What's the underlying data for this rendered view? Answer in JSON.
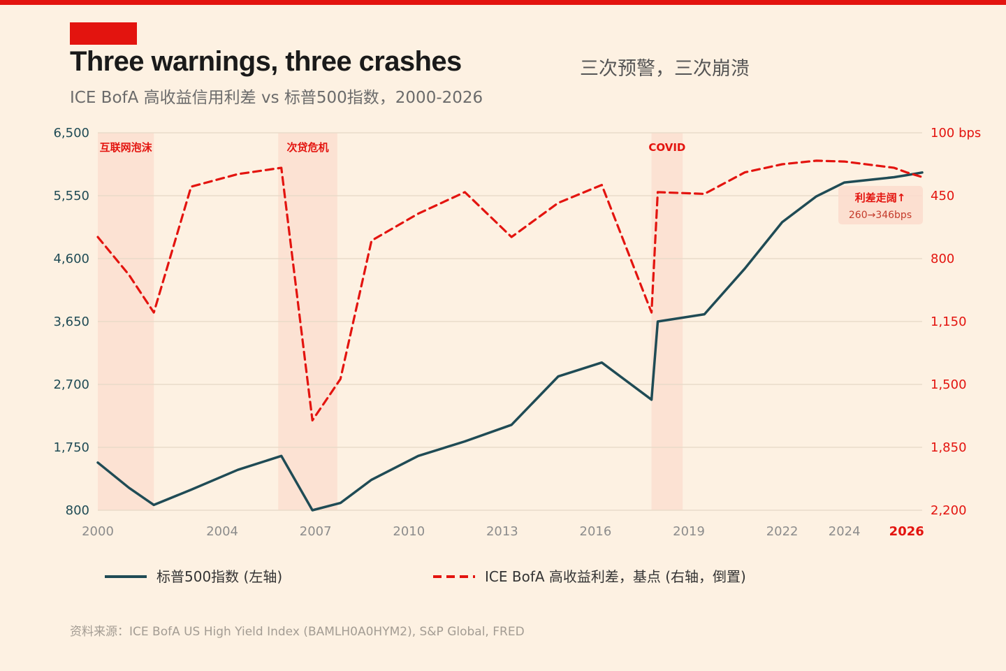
{
  "header": {
    "title": "Three warnings, three crashes",
    "title_zh": "三次预警，三次崩溃",
    "subtitle": "ICE BofA 高收益信用利差 vs 标普500指数，2000-2026"
  },
  "colors": {
    "accent": "#e3140f",
    "sp500_line": "#1f4b55",
    "spread_line": "#e3140f",
    "background": "#fdf1e2",
    "shade": "#fbdccd"
  },
  "chart_data": {
    "type": "line",
    "x_range": [
      2000,
      2026.5
    ],
    "x_ticks": [
      2000,
      2004,
      2007,
      2010,
      2013,
      2016,
      2019,
      2022,
      2024,
      2026
    ],
    "x_tick_labels": [
      "2000",
      "2004",
      "2007",
      "2010",
      "2013",
      "2016",
      "2019",
      "2022",
      "2024",
      "2026"
    ],
    "x_highlight_tick": "2026",
    "y_left": {
      "range": [
        800,
        6500
      ],
      "ticks": [
        800,
        1750,
        2700,
        3650,
        4600,
        5550,
        6500
      ],
      "tick_labels": [
        "800",
        "1,750",
        "2,700",
        "3,650",
        "4,600",
        "5,550",
        "6,500"
      ]
    },
    "y_right": {
      "range": [
        2200,
        100
      ],
      "inverted": true,
      "ticks": [
        100,
        450,
        800,
        1150,
        1500,
        1850,
        2200
      ],
      "tick_labels": [
        "100 bps",
        "450",
        "800",
        "1,150",
        "1,500",
        "1,850",
        "2,200"
      ]
    },
    "shaded_periods": [
      {
        "label": "互联网泡沫",
        "start": 2000,
        "end": 2001.8
      },
      {
        "label": "次贷危机",
        "start": 2005.8,
        "end": 2007.7
      },
      {
        "label": "COVID",
        "start": 2017.8,
        "end": 2018.8
      }
    ],
    "series": [
      {
        "name": "标普500指数 (左轴)",
        "axis": "left",
        "style": "solid",
        "points": [
          [
            2000,
            1520
          ],
          [
            2001,
            1140
          ],
          [
            2001.8,
            880
          ],
          [
            2003,
            1110
          ],
          [
            2004.5,
            1410
          ],
          [
            2005.9,
            1620
          ],
          [
            2006.9,
            800
          ],
          [
            2007.8,
            910
          ],
          [
            2008.8,
            1260
          ],
          [
            2010.3,
            1620
          ],
          [
            2011.8,
            1840
          ],
          [
            2013.3,
            2090
          ],
          [
            2014.8,
            2820
          ],
          [
            2016.2,
            3030
          ],
          [
            2017.8,
            2470
          ],
          [
            2018.0,
            3650
          ],
          [
            2019.5,
            3760
          ],
          [
            2020.8,
            4450
          ],
          [
            2022.0,
            5150
          ],
          [
            2023.1,
            5540
          ],
          [
            2024.0,
            5750
          ],
          [
            2025.6,
            5830
          ],
          [
            2026.0,
            5860
          ],
          [
            2026.5,
            5900
          ]
        ]
      },
      {
        "name": "ICE BofA 高收益利差，基点 (右轴，倒置)",
        "axis": "right",
        "style": "dashed",
        "points": [
          [
            2000,
            680
          ],
          [
            2001,
            890
          ],
          [
            2001.8,
            1100
          ],
          [
            2003,
            400
          ],
          [
            2004.5,
            330
          ],
          [
            2005.9,
            295
          ],
          [
            2006.9,
            1700
          ],
          [
            2007.8,
            1470
          ],
          [
            2008.8,
            700
          ],
          [
            2010.3,
            550
          ],
          [
            2011.8,
            430
          ],
          [
            2013.3,
            680
          ],
          [
            2014.8,
            490
          ],
          [
            2016.2,
            390
          ],
          [
            2017.8,
            1100
          ],
          [
            2018.0,
            430
          ],
          [
            2019.5,
            440
          ],
          [
            2020.8,
            320
          ],
          [
            2022.0,
            275
          ],
          [
            2023.1,
            255
          ],
          [
            2024.0,
            260
          ],
          [
            2025.6,
            295
          ],
          [
            2026.0,
            320
          ],
          [
            2026.5,
            346
          ]
        ]
      }
    ],
    "annotation": {
      "title": "利差走阔↑",
      "detail": "260→346bps"
    }
  },
  "legend": {
    "sp500": "标普500指数 (左轴)",
    "spread": "ICE BofA 高收益利差，基点 (右轴，倒置)"
  },
  "source": "资料来源：ICE BofA US High Yield Index (BAMLH0A0HYM2), S&P Global, FRED"
}
